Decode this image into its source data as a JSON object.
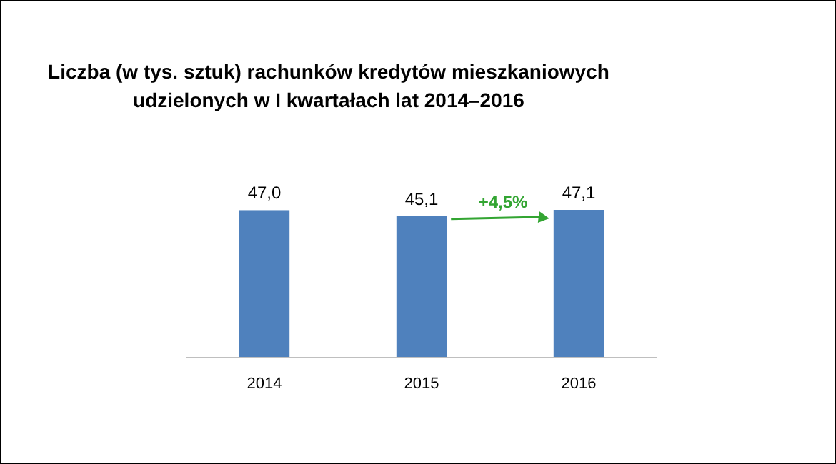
{
  "chart_data": {
    "type": "bar",
    "title": "Liczba (w tys. sztuk) rachunków kredytów mieszkaniowych udzielonych w I kwartałach lat 2014–2016",
    "categories": [
      "2014",
      "2015",
      "2016"
    ],
    "values": [
      47.0,
      45.1,
      47.1
    ],
    "value_labels": [
      "47,0",
      "45,1",
      "47,1"
    ],
    "color": "#4f81bd",
    "annotations": [
      "+4,5%"
    ]
  }
}
